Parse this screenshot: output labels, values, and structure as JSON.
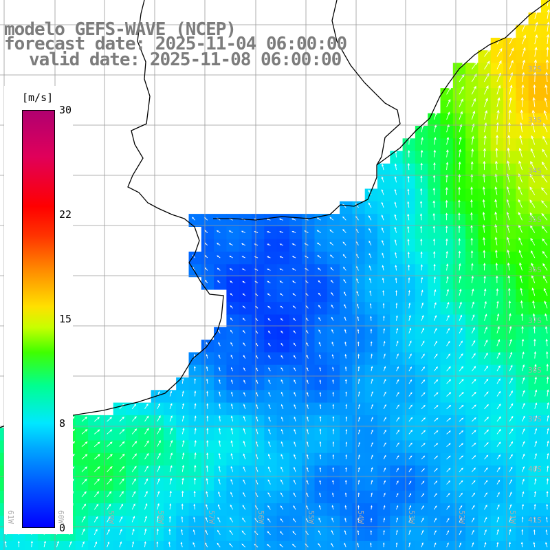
{
  "title": {
    "model": "modelo GEFS-WAVE (NCEP)",
    "forecast": "forecast date: 2025-11-04 06:00:00",
    "valid": "valid date: 2025-11-08 06:00:00"
  },
  "colorbar": {
    "unit": "[m/s]",
    "labels": [
      "30",
      "22",
      "15",
      "8",
      "0"
    ],
    "label_values": [
      30,
      22,
      15,
      8,
      0
    ],
    "min": 0,
    "max": 30
  },
  "lat_labels": [
    "32S",
    "33S",
    "34S",
    "35S",
    "36S",
    "37S",
    "38S",
    "39S",
    "40S",
    "41S"
  ],
  "lon_labels": [
    "61W",
    "60W",
    "59W",
    "58W",
    "57W",
    "56W",
    "55W",
    "54W",
    "53W",
    "52W",
    "51W"
  ],
  "colors": {
    "land": "#ffffff",
    "coast": "#000000",
    "grid": "#999999",
    "arrow": "#ffffff"
  }
}
